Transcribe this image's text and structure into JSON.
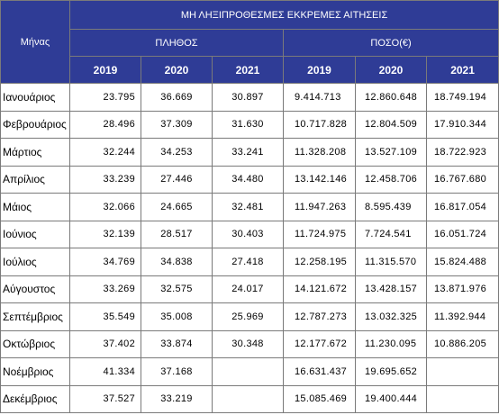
{
  "header": {
    "title": "ΜΗ ΛΗΞΙΠΡΟΘΕΣΜΕΣ ΕΚΚΡΕΜΕΣ ΑΙΤΗΣΕΙΣ",
    "month_label": "Μήνας",
    "group_count": "ΠΛΗΘΟΣ",
    "group_amount": "ΠΟΣΟ(€)",
    "years": [
      "2019",
      "2020",
      "2021"
    ]
  },
  "rows": [
    {
      "month": "Ιανουάριος",
      "count": [
        "23.795",
        "36.669",
        "30.897"
      ],
      "amount": [
        "9.414.713",
        "12.860.648",
        "18.749.194"
      ]
    },
    {
      "month": "Φεβρουάριος",
      "count": [
        "28.496",
        "37.309",
        "31.630"
      ],
      "amount": [
        "10.717.828",
        "12.804.509",
        "17.910.344"
      ]
    },
    {
      "month": "Μάρτιος",
      "count": [
        "32.244",
        "34.253",
        "33.241"
      ],
      "amount": [
        "11.328.208",
        "13.527.109",
        "18.722.923"
      ]
    },
    {
      "month": "Απρίλιος",
      "count": [
        "33.239",
        "27.446",
        "34.480"
      ],
      "amount": [
        "13.142.146",
        "12.458.706",
        "16.767.680"
      ]
    },
    {
      "month": "Μάιος",
      "count": [
        "32.066",
        "24.665",
        "32.481"
      ],
      "amount": [
        "11.947.263",
        "8.595.439",
        "16.817.054"
      ]
    },
    {
      "month": "Ιούνιος",
      "count": [
        "32.139",
        "28.517",
        "30.403"
      ],
      "amount": [
        "11.724.975",
        "7.724.541",
        "16.051.724"
      ]
    },
    {
      "month": "Ιούλιος",
      "count": [
        "34.769",
        "34.838",
        "27.418"
      ],
      "amount": [
        "12.258.195",
        "11.315.570",
        "15.824.488"
      ]
    },
    {
      "month": "Αύγουστος",
      "count": [
        "33.269",
        "32.575",
        "24.017"
      ],
      "amount": [
        "14.121.672",
        "13.428.157",
        "13.871.976"
      ]
    },
    {
      "month": "Σεπτέμβριος",
      "count": [
        "35.549",
        "35.008",
        "25.969"
      ],
      "amount": [
        "12.787.273",
        "13.032.325",
        "11.392.944"
      ]
    },
    {
      "month": "Οκτώβριος",
      "count": [
        "37.402",
        "33.874",
        "30.348"
      ],
      "amount": [
        "12.177.672",
        "11.230.095",
        "10.886.205"
      ]
    },
    {
      "month": "Νοέμβριος",
      "count": [
        "41.334",
        "37.168",
        ""
      ],
      "amount": [
        "16.631.437",
        "19.695.652",
        ""
      ]
    },
    {
      "month": "Δεκέμβριος",
      "count": [
        "37.527",
        "33.219",
        ""
      ],
      "amount": [
        "15.085.469",
        "19.400.444",
        ""
      ]
    }
  ]
}
